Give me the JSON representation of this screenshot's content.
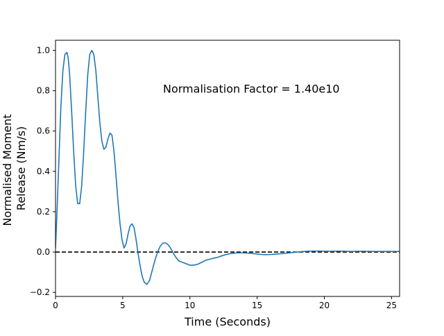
{
  "chart_data": {
    "type": "line",
    "title": "",
    "xlabel": "Time (Seconds)",
    "ylabel": "Normalised Moment Release (Nm/s)",
    "ylabel_lines": [
      "Normalised Moment",
      "Release (Nm/s)"
    ],
    "xlim": [
      0,
      25.6
    ],
    "ylim": [
      -0.22,
      1.05
    ],
    "xticks": [
      0,
      5,
      10,
      15,
      20,
      25
    ],
    "xtick_labels": [
      "0",
      "5",
      "10",
      "15",
      "20",
      "25"
    ],
    "yticks": [
      -0.2,
      0.0,
      0.2,
      0.4,
      0.6,
      0.8,
      1.0
    ],
    "ytick_labels": [
      "−0.2",
      "0.0",
      "0.2",
      "0.4",
      "0.6",
      "0.8",
      "1.0"
    ],
    "annotation": "Normalisation Factor = 1.40e10",
    "annotation_pos": [
      8.0,
      0.81
    ],
    "grid": false,
    "reference_line": {
      "y": 0.0,
      "style": "dashed",
      "color": "#000000"
    },
    "series": [
      {
        "color": "#1f77b4",
        "x": [
          0,
          0.1,
          0.25,
          0.4,
          0.55,
          0.7,
          0.85,
          0.95,
          1.05,
          1.2,
          1.35,
          1.5,
          1.65,
          1.8,
          1.95,
          2.1,
          2.25,
          2.4,
          2.55,
          2.7,
          2.85,
          3.0,
          3.15,
          3.3,
          3.45,
          3.6,
          3.75,
          3.9,
          4.05,
          4.2,
          4.35,
          4.5,
          4.65,
          4.8,
          4.95,
          5.1,
          5.25,
          5.4,
          5.55,
          5.7,
          5.85,
          6.0,
          6.15,
          6.3,
          6.45,
          6.6,
          6.8,
          7.0,
          7.2,
          7.4,
          7.6,
          7.8,
          8.0,
          8.2,
          8.4,
          8.6,
          8.8,
          9.0,
          9.2,
          9.4,
          9.6,
          9.8,
          10.0,
          10.3,
          10.6,
          10.9,
          11.2,
          11.5,
          11.8,
          12.1,
          12.4,
          12.7,
          13.0,
          13.5,
          14.0,
          14.5,
          15.0,
          15.5,
          16.0,
          16.5,
          17.0,
          17.5,
          18.0,
          18.5,
          19.0,
          19.5,
          20.0,
          20.5,
          21.0,
          21.5,
          22.0,
          22.5,
          23.0,
          23.5,
          24.0,
          24.5,
          25.0,
          25.6
        ],
        "y": [
          0.02,
          0.18,
          0.45,
          0.72,
          0.9,
          0.98,
          0.99,
          0.96,
          0.88,
          0.7,
          0.5,
          0.33,
          0.24,
          0.24,
          0.33,
          0.5,
          0.7,
          0.88,
          0.98,
          1.0,
          0.98,
          0.9,
          0.77,
          0.64,
          0.55,
          0.51,
          0.52,
          0.56,
          0.59,
          0.58,
          0.5,
          0.38,
          0.25,
          0.14,
          0.06,
          0.02,
          0.04,
          0.09,
          0.13,
          0.14,
          0.12,
          0.06,
          -0.01,
          -0.07,
          -0.12,
          -0.15,
          -0.16,
          -0.14,
          -0.09,
          -0.04,
          0.0,
          0.03,
          0.045,
          0.045,
          0.035,
          0.015,
          -0.01,
          -0.03,
          -0.045,
          -0.05,
          -0.055,
          -0.06,
          -0.065,
          -0.065,
          -0.06,
          -0.05,
          -0.04,
          -0.035,
          -0.03,
          -0.025,
          -0.018,
          -0.012,
          -0.008,
          -0.004,
          -0.004,
          -0.006,
          -0.01,
          -0.013,
          -0.012,
          -0.01,
          -0.007,
          -0.003,
          0.0,
          0.003,
          0.005,
          0.005,
          0.004,
          0.004,
          0.005,
          0.004,
          0.003,
          0.004,
          0.004,
          0.003,
          0.003,
          0.003,
          0.003,
          0.003
        ]
      }
    ]
  }
}
